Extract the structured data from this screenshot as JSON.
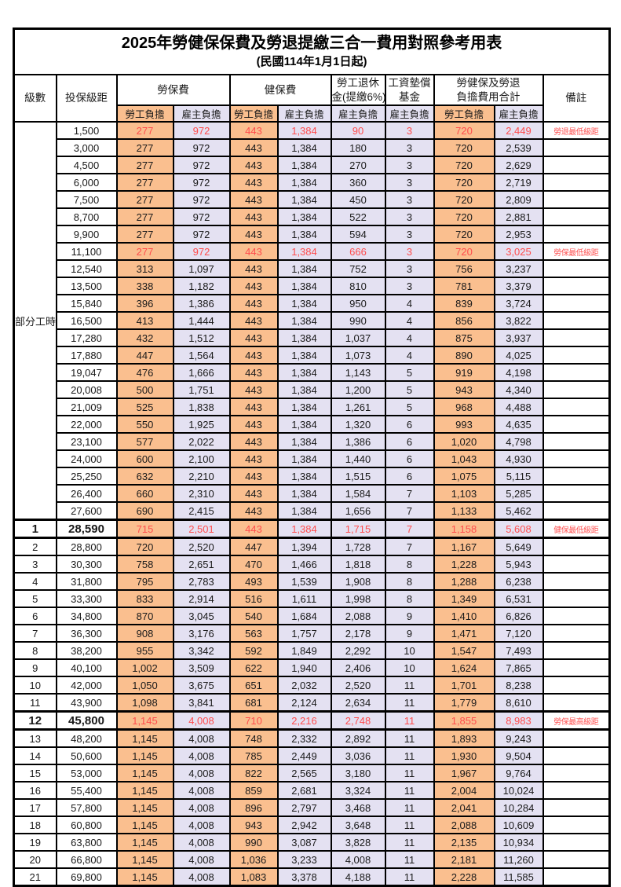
{
  "title": "2025年勞健保保費及勞退提繳三合一費用對照參考用表",
  "subtitle": "(民國114年1月1日起)",
  "header": {
    "level": "級數",
    "bracket": "投保級距",
    "labor": "勞保費",
    "health": "健保費",
    "pension": [
      "勞工退休",
      "金(提繳6%)"
    ],
    "wage_fund": [
      "工資墊償",
      "基金"
    ],
    "total": [
      "勞健保及勞退",
      "負擔費用合計"
    ],
    "remark": "備註",
    "employee": "勞工負擔",
    "employer": "雇主負擔"
  },
  "part_time_label": "部分工時",
  "part_time_rowspan": 23,
  "colors": {
    "employee_bg": "#FABF8F",
    "employer_bg": "#E4E1F2",
    "highlight_text": "#FF4D4D",
    "remark_text": "#FF5252"
  },
  "rows": [
    {
      "lv": "",
      "br": "1,500",
      "a": "277",
      "b": "972",
      "c": "443",
      "d": "1,384",
      "e": "90",
      "f": "3",
      "g": "720",
      "h": "2,449",
      "rm": "勞退最低級距",
      "red": true,
      "em": false
    },
    {
      "lv": "",
      "br": "3,000",
      "a": "277",
      "b": "972",
      "c": "443",
      "d": "1,384",
      "e": "180",
      "f": "3",
      "g": "720",
      "h": "2,539",
      "rm": "",
      "red": false,
      "em": false
    },
    {
      "lv": "",
      "br": "4,500",
      "a": "277",
      "b": "972",
      "c": "443",
      "d": "1,384",
      "e": "270",
      "f": "3",
      "g": "720",
      "h": "2,629",
      "rm": "",
      "red": false,
      "em": false
    },
    {
      "lv": "",
      "br": "6,000",
      "a": "277",
      "b": "972",
      "c": "443",
      "d": "1,384",
      "e": "360",
      "f": "3",
      "g": "720",
      "h": "2,719",
      "rm": "",
      "red": false,
      "em": false
    },
    {
      "lv": "",
      "br": "7,500",
      "a": "277",
      "b": "972",
      "c": "443",
      "d": "1,384",
      "e": "450",
      "f": "3",
      "g": "720",
      "h": "2,809",
      "rm": "",
      "red": false,
      "em": false
    },
    {
      "lv": "",
      "br": "8,700",
      "a": "277",
      "b": "972",
      "c": "443",
      "d": "1,384",
      "e": "522",
      "f": "3",
      "g": "720",
      "h": "2,881",
      "rm": "",
      "red": false,
      "em": false
    },
    {
      "lv": "",
      "br": "9,900",
      "a": "277",
      "b": "972",
      "c": "443",
      "d": "1,384",
      "e": "594",
      "f": "3",
      "g": "720",
      "h": "2,953",
      "rm": "",
      "red": false,
      "em": false
    },
    {
      "lv": "",
      "br": "11,100",
      "a": "277",
      "b": "972",
      "c": "443",
      "d": "1,384",
      "e": "666",
      "f": "3",
      "g": "720",
      "h": "3,025",
      "rm": "勞保最低級距",
      "red": true,
      "em": false
    },
    {
      "lv": "",
      "br": "12,540",
      "a": "313",
      "b": "1,097",
      "c": "443",
      "d": "1,384",
      "e": "752",
      "f": "3",
      "g": "756",
      "h": "3,237",
      "rm": "",
      "red": false,
      "em": false
    },
    {
      "lv": "",
      "br": "13,500",
      "a": "338",
      "b": "1,182",
      "c": "443",
      "d": "1,384",
      "e": "810",
      "f": "3",
      "g": "781",
      "h": "3,379",
      "rm": "",
      "red": false,
      "em": false
    },
    {
      "lv": "",
      "br": "15,840",
      "a": "396",
      "b": "1,386",
      "c": "443",
      "d": "1,384",
      "e": "950",
      "f": "4",
      "g": "839",
      "h": "3,724",
      "rm": "",
      "red": false,
      "em": false
    },
    {
      "lv": "",
      "br": "16,500",
      "a": "413",
      "b": "1,444",
      "c": "443",
      "d": "1,384",
      "e": "990",
      "f": "4",
      "g": "856",
      "h": "3,822",
      "rm": "",
      "red": false,
      "em": false
    },
    {
      "lv": "",
      "br": "17,280",
      "a": "432",
      "b": "1,512",
      "c": "443",
      "d": "1,384",
      "e": "1,037",
      "f": "4",
      "g": "875",
      "h": "3,937",
      "rm": "",
      "red": false,
      "em": false
    },
    {
      "lv": "",
      "br": "17,880",
      "a": "447",
      "b": "1,564",
      "c": "443",
      "d": "1,384",
      "e": "1,073",
      "f": "4",
      "g": "890",
      "h": "4,025",
      "rm": "",
      "red": false,
      "em": false
    },
    {
      "lv": "",
      "br": "19,047",
      "a": "476",
      "b": "1,666",
      "c": "443",
      "d": "1,384",
      "e": "1,143",
      "f": "5",
      "g": "919",
      "h": "4,198",
      "rm": "",
      "red": false,
      "em": false
    },
    {
      "lv": "",
      "br": "20,008",
      "a": "500",
      "b": "1,751",
      "c": "443",
      "d": "1,384",
      "e": "1,200",
      "f": "5",
      "g": "943",
      "h": "4,340",
      "rm": "",
      "red": false,
      "em": false
    },
    {
      "lv": "",
      "br": "21,009",
      "a": "525",
      "b": "1,838",
      "c": "443",
      "d": "1,384",
      "e": "1,261",
      "f": "5",
      "g": "968",
      "h": "4,488",
      "rm": "",
      "red": false,
      "em": false
    },
    {
      "lv": "",
      "br": "22,000",
      "a": "550",
      "b": "1,925",
      "c": "443",
      "d": "1,384",
      "e": "1,320",
      "f": "6",
      "g": "993",
      "h": "4,635",
      "rm": "",
      "red": false,
      "em": false
    },
    {
      "lv": "",
      "br": "23,100",
      "a": "577",
      "b": "2,022",
      "c": "443",
      "d": "1,384",
      "e": "1,386",
      "f": "6",
      "g": "1,020",
      "h": "4,798",
      "rm": "",
      "red": false,
      "em": false
    },
    {
      "lv": "",
      "br": "24,000",
      "a": "600",
      "b": "2,100",
      "c": "443",
      "d": "1,384",
      "e": "1,440",
      "f": "6",
      "g": "1,043",
      "h": "4,930",
      "rm": "",
      "red": false,
      "em": false
    },
    {
      "lv": "",
      "br": "25,250",
      "a": "632",
      "b": "2,210",
      "c": "443",
      "d": "1,384",
      "e": "1,515",
      "f": "6",
      "g": "1,075",
      "h": "5,115",
      "rm": "",
      "red": false,
      "em": false
    },
    {
      "lv": "",
      "br": "26,400",
      "a": "660",
      "b": "2,310",
      "c": "443",
      "d": "1,384",
      "e": "1,584",
      "f": "7",
      "g": "1,103",
      "h": "5,285",
      "rm": "",
      "red": false,
      "em": false
    },
    {
      "lv": "",
      "br": "27,600",
      "a": "690",
      "b": "2,415",
      "c": "443",
      "d": "1,384",
      "e": "1,656",
      "f": "7",
      "g": "1,133",
      "h": "5,462",
      "rm": "",
      "red": false,
      "em": false
    },
    {
      "lv": "1",
      "br": "28,590",
      "a": "715",
      "b": "2,501",
      "c": "443",
      "d": "1,384",
      "e": "1,715",
      "f": "7",
      "g": "1,158",
      "h": "5,608",
      "rm": "健保最低級距",
      "red": true,
      "em": true
    },
    {
      "lv": "2",
      "br": "28,800",
      "a": "720",
      "b": "2,520",
      "c": "447",
      "d": "1,394",
      "e": "1,728",
      "f": "7",
      "g": "1,167",
      "h": "5,649",
      "rm": "",
      "red": false,
      "em": false
    },
    {
      "lv": "3",
      "br": "30,300",
      "a": "758",
      "b": "2,651",
      "c": "470",
      "d": "1,466",
      "e": "1,818",
      "f": "8",
      "g": "1,228",
      "h": "5,943",
      "rm": "",
      "red": false,
      "em": false
    },
    {
      "lv": "4",
      "br": "31,800",
      "a": "795",
      "b": "2,783",
      "c": "493",
      "d": "1,539",
      "e": "1,908",
      "f": "8",
      "g": "1,288",
      "h": "6,238",
      "rm": "",
      "red": false,
      "em": false
    },
    {
      "lv": "5",
      "br": "33,300",
      "a": "833",
      "b": "2,914",
      "c": "516",
      "d": "1,611",
      "e": "1,998",
      "f": "8",
      "g": "1,349",
      "h": "6,531",
      "rm": "",
      "red": false,
      "em": false
    },
    {
      "lv": "6",
      "br": "34,800",
      "a": "870",
      "b": "3,045",
      "c": "540",
      "d": "1,684",
      "e": "2,088",
      "f": "9",
      "g": "1,410",
      "h": "6,826",
      "rm": "",
      "red": false,
      "em": false
    },
    {
      "lv": "7",
      "br": "36,300",
      "a": "908",
      "b": "3,176",
      "c": "563",
      "d": "1,757",
      "e": "2,178",
      "f": "9",
      "g": "1,471",
      "h": "7,120",
      "rm": "",
      "red": false,
      "em": false
    },
    {
      "lv": "8",
      "br": "38,200",
      "a": "955",
      "b": "3,342",
      "c": "592",
      "d": "1,849",
      "e": "2,292",
      "f": "10",
      "g": "1,547",
      "h": "7,493",
      "rm": "",
      "red": false,
      "em": false
    },
    {
      "lv": "9",
      "br": "40,100",
      "a": "1,002",
      "b": "3,509",
      "c": "622",
      "d": "1,940",
      "e": "2,406",
      "f": "10",
      "g": "1,624",
      "h": "7,865",
      "rm": "",
      "red": false,
      "em": false
    },
    {
      "lv": "10",
      "br": "42,000",
      "a": "1,050",
      "b": "3,675",
      "c": "651",
      "d": "2,032",
      "e": "2,520",
      "f": "11",
      "g": "1,701",
      "h": "8,238",
      "rm": "",
      "red": false,
      "em": false
    },
    {
      "lv": "11",
      "br": "43,900",
      "a": "1,098",
      "b": "3,841",
      "c": "681",
      "d": "2,124",
      "e": "2,634",
      "f": "11",
      "g": "1,779",
      "h": "8,610",
      "rm": "",
      "red": false,
      "em": false
    },
    {
      "lv": "12",
      "br": "45,800",
      "a": "1,145",
      "b": "4,008",
      "c": "710",
      "d": "2,216",
      "e": "2,748",
      "f": "11",
      "g": "1,855",
      "h": "8,983",
      "rm": "勞保最高級距",
      "red": true,
      "em": true
    },
    {
      "lv": "13",
      "br": "48,200",
      "a": "1,145",
      "b": "4,008",
      "c": "748",
      "d": "2,332",
      "e": "2,892",
      "f": "11",
      "g": "1,893",
      "h": "9,243",
      "rm": "",
      "red": false,
      "em": false
    },
    {
      "lv": "14",
      "br": "50,600",
      "a": "1,145",
      "b": "4,008",
      "c": "785",
      "d": "2,449",
      "e": "3,036",
      "f": "11",
      "g": "1,930",
      "h": "9,504",
      "rm": "",
      "red": false,
      "em": false
    },
    {
      "lv": "15",
      "br": "53,000",
      "a": "1,145",
      "b": "4,008",
      "c": "822",
      "d": "2,565",
      "e": "3,180",
      "f": "11",
      "g": "1,967",
      "h": "9,764",
      "rm": "",
      "red": false,
      "em": false
    },
    {
      "lv": "16",
      "br": "55,400",
      "a": "1,145",
      "b": "4,008",
      "c": "859",
      "d": "2,681",
      "e": "3,324",
      "f": "11",
      "g": "2,004",
      "h": "10,024",
      "rm": "",
      "red": false,
      "em": false
    },
    {
      "lv": "17",
      "br": "57,800",
      "a": "1,145",
      "b": "4,008",
      "c": "896",
      "d": "2,797",
      "e": "3,468",
      "f": "11",
      "g": "2,041",
      "h": "10,284",
      "rm": "",
      "red": false,
      "em": false
    },
    {
      "lv": "18",
      "br": "60,800",
      "a": "1,145",
      "b": "4,008",
      "c": "943",
      "d": "2,942",
      "e": "3,648",
      "f": "11",
      "g": "2,088",
      "h": "10,609",
      "rm": "",
      "red": false,
      "em": false
    },
    {
      "lv": "19",
      "br": "63,800",
      "a": "1,145",
      "b": "4,008",
      "c": "990",
      "d": "3,087",
      "e": "3,828",
      "f": "11",
      "g": "2,135",
      "h": "10,934",
      "rm": "",
      "red": false,
      "em": false
    },
    {
      "lv": "20",
      "br": "66,800",
      "a": "1,145",
      "b": "4,008",
      "c": "1,036",
      "d": "3,233",
      "e": "4,008",
      "f": "11",
      "g": "2,181",
      "h": "11,260",
      "rm": "",
      "red": false,
      "em": false
    },
    {
      "lv": "21",
      "br": "69,800",
      "a": "1,145",
      "b": "4,008",
      "c": "1,083",
      "d": "3,378",
      "e": "4,188",
      "f": "11",
      "g": "2,228",
      "h": "11,585",
      "rm": "",
      "red": false,
      "em": false
    }
  ]
}
